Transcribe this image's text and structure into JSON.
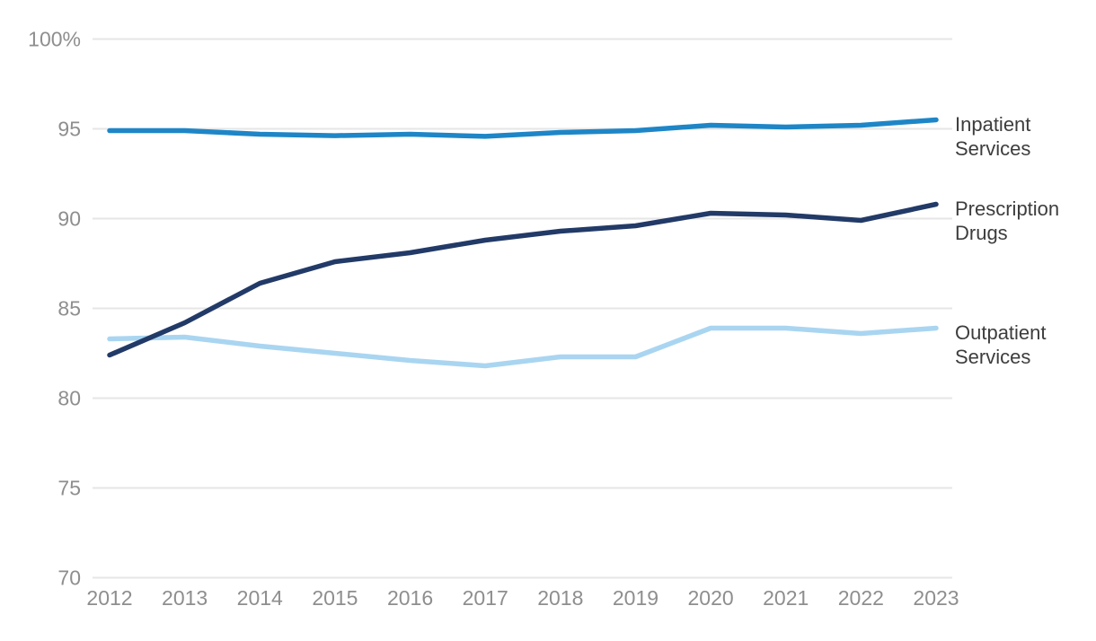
{
  "chart_data": {
    "type": "line",
    "title": "",
    "xlabel": "",
    "ylabel": "",
    "x": [
      2012,
      2013,
      2014,
      2015,
      2016,
      2017,
      2018,
      2019,
      2020,
      2021,
      2022,
      2023
    ],
    "series": [
      {
        "name": "Inpatient Services",
        "color": "#1e86c7",
        "values": [
          94.9,
          94.9,
          94.7,
          94.62,
          94.7,
          94.58,
          94.8,
          94.9,
          95.2,
          95.1,
          95.2,
          95.5
        ]
      },
      {
        "name": "Prescription Drugs",
        "color": "#223a67",
        "values": [
          82.4,
          84.2,
          86.4,
          87.6,
          88.1,
          88.8,
          89.3,
          89.6,
          90.3,
          90.2,
          89.9,
          90.8
        ]
      },
      {
        "name": "Outpatient Services",
        "color": "#a9d5f1",
        "values": [
          83.3,
          83.4,
          82.9,
          82.5,
          82.1,
          81.8,
          82.3,
          82.3,
          83.9,
          83.9,
          83.6,
          83.9
        ]
      }
    ],
    "ylim": [
      70,
      100
    ],
    "yticks": [
      {
        "value": 100,
        "label": "100%"
      },
      {
        "value": 95,
        "label": "95"
      },
      {
        "value": 90,
        "label": "90"
      },
      {
        "value": 85,
        "label": "85"
      },
      {
        "value": 80,
        "label": "80"
      },
      {
        "value": 75,
        "label": "75"
      },
      {
        "value": 70,
        "label": "70"
      }
    ],
    "grid": "horizontal",
    "legend_position": "right-end-labels"
  },
  "colors": {
    "background": "#ffffff",
    "gridline": "#e6e6e6",
    "axis_text": "#8e8e8e",
    "series_label_text": "#3d3d3d"
  }
}
